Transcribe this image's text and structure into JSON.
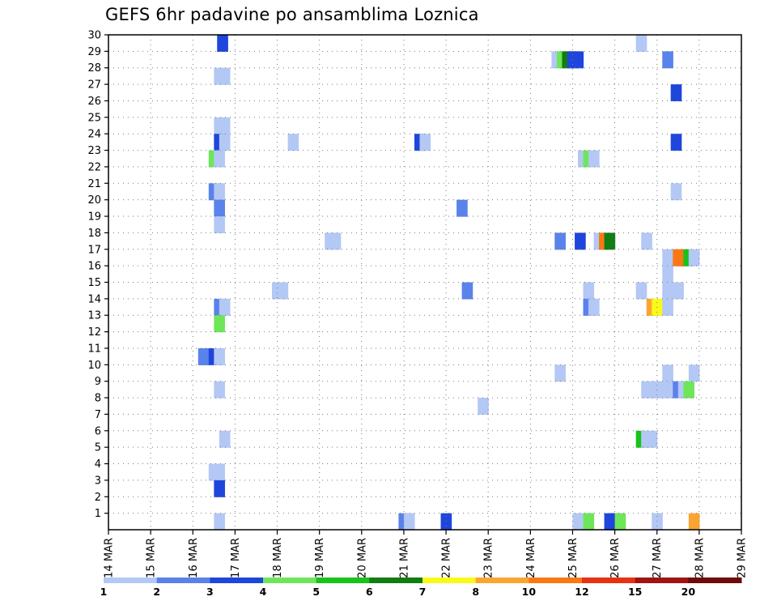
{
  "chart_data": {
    "type": "heatmap",
    "title": "GEFS 6hr padavine po ansamblima Loznica",
    "xlabel": "",
    "ylabel": "",
    "x_ticks": [
      "14 MAR",
      "15 MAR",
      "16 MAR",
      "17 MAR",
      "18 MAR",
      "19 MAR",
      "20 MAR",
      "21 MAR",
      "22 MAR",
      "23 MAR",
      "24 MAR",
      "25 MAR",
      "26 MAR",
      "27 MAR",
      "28 MAR",
      "29 MAR"
    ],
    "y_ticks": [
      "1",
      "2",
      "3",
      "4",
      "5",
      "6",
      "7",
      "8",
      "9",
      "10",
      "11",
      "12",
      "13",
      "14",
      "15",
      "16",
      "17",
      "18",
      "19",
      "20",
      "21",
      "22",
      "23",
      "24",
      "25",
      "26",
      "27",
      "28",
      "29",
      "30"
    ],
    "xlim": [
      0,
      60
    ],
    "ylim": [
      0,
      30
    ],
    "x_unit": "6-hour steps from 14 MAR 00Z",
    "grid": true,
    "legend_placement": "bottom",
    "legend": {
      "labels": [
        "1",
        "2",
        "3",
        "4",
        "5",
        "6",
        "7",
        "8",
        "10",
        "12",
        "15",
        "20"
      ],
      "colors": [
        "#b4c8f5",
        "#5a82eb",
        "#1e46dc",
        "#6ee65a",
        "#19c319",
        "#127d12",
        "#fafa19",
        "#faa532",
        "#fa7814",
        "#e63212",
        "#a0140f",
        "#6e0a0a"
      ]
    },
    "levels": [
      1,
      2,
      3,
      4,
      5,
      6,
      7,
      8,
      10,
      12,
      15,
      20
    ],
    "cells": [
      [
        10.3,
        29,
        3
      ],
      [
        10,
        27,
        1
      ],
      [
        10.5,
        27,
        1
      ],
      [
        10,
        24,
        1
      ],
      [
        10.5,
        24,
        1
      ],
      [
        10,
        23,
        3
      ],
      [
        10.5,
        23,
        1
      ],
      [
        9.5,
        22,
        4
      ],
      [
        10,
        22,
        1
      ],
      [
        17,
        23,
        1
      ],
      [
        9.5,
        20,
        2
      ],
      [
        10,
        20,
        1
      ],
      [
        10,
        19,
        2
      ],
      [
        10,
        18,
        1
      ],
      [
        10,
        13,
        2
      ],
      [
        10.5,
        13,
        1
      ],
      [
        10,
        12,
        4
      ],
      [
        8.5,
        10,
        2
      ],
      [
        9.5,
        10,
        3
      ],
      [
        10,
        10,
        1
      ],
      [
        10,
        8,
        1
      ],
      [
        10.5,
        5,
        1
      ],
      [
        9.5,
        3,
        1
      ],
      [
        10,
        3,
        1
      ],
      [
        10,
        2,
        3
      ],
      [
        10,
        0,
        1
      ],
      [
        15.5,
        14,
        1
      ],
      [
        16,
        14,
        1
      ],
      [
        20.5,
        17,
        1
      ],
      [
        21,
        17,
        1
      ],
      [
        29,
        23,
        3
      ],
      [
        29.5,
        23,
        1
      ],
      [
        33,
        19,
        2
      ],
      [
        33.5,
        14,
        2
      ],
      [
        35,
        7,
        1
      ],
      [
        27.5,
        0,
        2
      ],
      [
        28,
        0,
        1
      ],
      [
        31.5,
        0,
        3
      ],
      [
        42,
        28,
        1
      ],
      [
        42.5,
        28,
        4
      ],
      [
        43,
        28,
        6
      ],
      [
        43.5,
        28,
        3
      ],
      [
        44,
        28,
        3
      ],
      [
        42.3,
        17,
        2
      ],
      [
        44.2,
        17,
        3
      ],
      [
        46,
        17,
        1
      ],
      [
        46.5,
        17,
        10
      ],
      [
        47,
        17,
        6
      ],
      [
        44.5,
        22,
        1
      ],
      [
        45,
        22,
        4
      ],
      [
        45.5,
        22,
        1
      ],
      [
        45,
        14,
        1
      ],
      [
        45,
        13,
        2
      ],
      [
        45.5,
        13,
        1
      ],
      [
        42.3,
        9,
        1
      ],
      [
        44,
        0,
        1
      ],
      [
        44.5,
        0,
        1
      ],
      [
        45,
        0,
        4
      ],
      [
        47,
        0,
        3
      ],
      [
        47.5,
        0,
        3
      ],
      [
        48,
        0,
        4
      ],
      [
        50,
        29,
        1
      ],
      [
        52.5,
        28,
        2
      ],
      [
        53.3,
        26,
        3
      ],
      [
        53.3,
        23,
        3
      ],
      [
        53.3,
        20,
        1
      ],
      [
        50.5,
        17,
        1
      ],
      [
        52.5,
        16,
        1
      ],
      [
        53,
        16,
        1
      ],
      [
        53.5,
        16,
        10
      ],
      [
        54,
        16,
        10
      ],
      [
        54.5,
        16,
        5
      ],
      [
        55,
        16,
        1
      ],
      [
        50,
        14,
        1
      ],
      [
        52.5,
        15,
        1
      ],
      [
        52.5,
        14,
        1
      ],
      [
        53.5,
        14,
        1
      ],
      [
        51,
        13,
        8
      ],
      [
        51.5,
        13,
        7
      ],
      [
        52.5,
        13,
        1
      ],
      [
        50.5,
        8,
        1
      ],
      [
        51,
        8,
        1
      ],
      [
        51.5,
        8,
        1
      ],
      [
        52,
        8,
        1
      ],
      [
        52.5,
        9,
        1
      ],
      [
        52.5,
        8,
        1
      ],
      [
        53.5,
        8,
        2
      ],
      [
        54,
        8,
        1
      ],
      [
        54.5,
        8,
        4
      ],
      [
        55,
        9,
        1
      ],
      [
        50,
        5,
        5
      ],
      [
        50.5,
        5,
        1
      ],
      [
        51,
        5,
        1
      ],
      [
        51.5,
        0,
        1
      ],
      [
        55,
        0,
        8
      ]
    ]
  }
}
